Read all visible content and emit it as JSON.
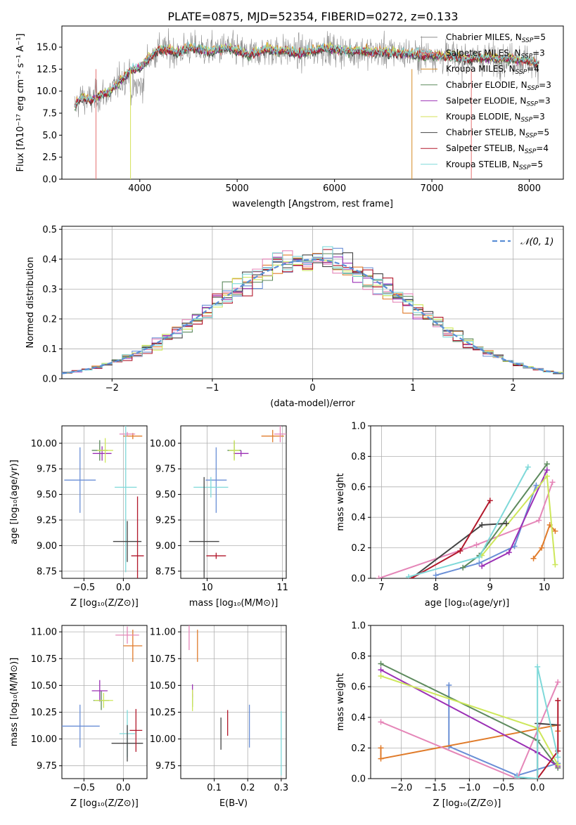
{
  "figure_title": "PLATE=0875, MJD=52354, FIBERID=0272, z=0.133",
  "colors": {
    "Chabrier MILES": "#8c8c8c",
    "Salpeter MILES": "#e57373",
    "Kroupa MILES": "#d58a24",
    "Chabrier ELODIE": "#5c8a5c",
    "Salpeter ELODIE": "#9b30b5",
    "Kroupa ELODIE": "#d4e157",
    "Chabrier STELIB": "#444444",
    "Salpeter STELIB": "#b2182b",
    "Kroupa STELIB": "#7fd9d9",
    "blue": "#6a8fd6",
    "orange": "#e07b2a",
    "pink": "#e586b8",
    "green": "#5d8a5d",
    "purple": "#9b30b5",
    "lime": "#cde75a",
    "dark": "#444444",
    "red": "#b2182b",
    "cyan": "#7fd9d9",
    "normal": "#5b8fd6"
  },
  "chart_data": [
    {
      "id": "spectrum",
      "type": "line",
      "title": "PLATE=0875, MJD=52354, FIBERID=0272, z=0.133",
      "xlabel": "wavelength [Angstrom, rest frame]",
      "ylabel": "Flux [fλ10⁻¹⁷ erg cm⁻² s⁻¹ A⁻¹]",
      "xlim": [
        3200,
        8350
      ],
      "ylim": [
        0,
        17.4
      ],
      "xticks": [
        4000,
        5000,
        6000,
        7000,
        8000
      ],
      "yticks": [
        "0.0",
        "2.5",
        "5.0",
        "7.5",
        "10.0",
        "12.5",
        "15.0"
      ],
      "ytick_values": [
        0,
        2.5,
        5,
        7.5,
        10,
        12.5,
        15
      ],
      "legend_position": "upper right",
      "legend": [
        {
          "name": "Chabrier MILES, N",
          "sub": "SSP",
          "tail": "=5",
          "color_key": "Chabrier MILES"
        },
        {
          "name": "Salpeter MILES, N",
          "sub": "SSP",
          "tail": "=3",
          "color_key": "Salpeter MILES"
        },
        {
          "name": "Kroupa MILES, N",
          "sub": "SSP",
          "tail": "=4",
          "color_key": "Kroupa MILES"
        },
        {
          "name": "Chabrier ELODIE, N",
          "sub": "SSP",
          "tail": "=3",
          "color_key": "Chabrier ELODIE"
        },
        {
          "name": "Salpeter ELODIE, N",
          "sub": "SSP",
          "tail": "=3",
          "color_key": "Salpeter ELODIE"
        },
        {
          "name": "Kroupa ELODIE, N",
          "sub": "SSP",
          "tail": "=3",
          "color_key": "Kroupa ELODIE"
        },
        {
          "name": "Chabrier STELIB, N",
          "sub": "SSP",
          "tail": "=5",
          "color_key": "Chabrier STELIB"
        },
        {
          "name": "Salpeter STELIB, N",
          "sub": "SSP",
          "tail": "=4",
          "color_key": "Salpeter STELIB"
        },
        {
          "name": "Kroupa STELIB, N",
          "sub": "SSP",
          "tail": "=5",
          "color_key": "Kroupa STELIB"
        }
      ],
      "data_trend": {
        "wavelength": [
          3330,
          3400,
          3500,
          3600,
          3700,
          3800,
          3900,
          4000,
          4100,
          4200,
          4300,
          4400,
          4500,
          4600,
          4700,
          4800,
          4900,
          5000,
          5100,
          5200,
          5300,
          5400,
          5500,
          5600,
          5700,
          5800,
          5900,
          6000,
          6100,
          6200,
          6300,
          6400,
          6500,
          6600,
          6700,
          6800,
          6900,
          7000,
          7100,
          7200,
          7300,
          7400,
          7500,
          7600,
          7700,
          7800,
          7900,
          8000,
          8100
        ],
        "flux": [
          8.2,
          9.3,
          8.9,
          9.6,
          9.9,
          11.2,
          12.3,
          12.6,
          13.8,
          14.8,
          14.6,
          14.4,
          14.9,
          14.8,
          14.5,
          14.7,
          14.9,
          14.6,
          14.2,
          14.3,
          14.8,
          14.5,
          14.6,
          14.3,
          14.4,
          14.6,
          14.9,
          14.7,
          14.5,
          14.6,
          14.5,
          14.4,
          14.5,
          14.4,
          14.3,
          14.2,
          14.1,
          14.2,
          13.9,
          14.0,
          13.8,
          13.6,
          13.8,
          13.7,
          13.6,
          13.7,
          13.5,
          13.4,
          13.1
        ]
      }
    },
    {
      "id": "residuals",
      "type": "line",
      "xlabel": "(data-model)/error",
      "ylabel": "Normed distribution",
      "xlim": [
        -2.5,
        2.5
      ],
      "ylim": [
        0,
        0.51
      ],
      "xticks": [
        "−2",
        "−1",
        "0",
        "1",
        "2"
      ],
      "xtick_values": [
        -2,
        -1,
        0,
        1,
        2
      ],
      "yticks": [
        "0.0",
        "0.1",
        "0.2",
        "0.3",
        "0.4",
        "0.5"
      ],
      "ytick_values": [
        0,
        0.1,
        0.2,
        0.3,
        0.4,
        0.5
      ],
      "legend_position": "upper right",
      "legend": [
        {
          "name": "𝒩(0, 1)",
          "color_key": "normal",
          "style": "dashed"
        }
      ],
      "normal_curve": {
        "mean": 0,
        "sigma": 1
      },
      "histogram_bin_width": 0.1
    },
    {
      "id": "age-vs-Z",
      "type": "scatter",
      "xlabel": "Z [log₁₀(Z/Z⊙)]",
      "ylabel": "age  [log₁₀(age/yr)]",
      "xlim": [
        -0.78,
        0.3
      ],
      "ylim": [
        8.68,
        10.17
      ],
      "xticks": [
        "−0.5",
        "0.0"
      ],
      "xtick_values": [
        -0.5,
        0
      ],
      "yticks": [
        "8.75",
        "9.00",
        "9.25",
        "9.50",
        "9.75",
        "10.00"
      ],
      "ytick_values": [
        8.75,
        9.0,
        9.25,
        9.5,
        9.75,
        10.0
      ],
      "points": [
        {
          "x": -0.55,
          "y": 9.64,
          "xerr": 0.2,
          "yerr": 0.32,
          "color_key": "blue"
        },
        {
          "x": 0.12,
          "y": 10.07,
          "xerr": 0.12,
          "yerr": 0.03,
          "color_key": "orange"
        },
        {
          "x": 0.05,
          "y": 10.09,
          "xerr": 0.1,
          "yerr": 0.02,
          "color_key": "pink"
        },
        {
          "x": -0.3,
          "y": 9.93,
          "xerr": 0.1,
          "yerr": 0.1,
          "color_key": "green"
        },
        {
          "x": -0.27,
          "y": 9.9,
          "xerr": 0.12,
          "yerr": 0.07,
          "color_key": "purple"
        },
        {
          "x": -0.23,
          "y": 9.93,
          "xerr": 0.1,
          "yerr": 0.12,
          "color_key": "lime"
        },
        {
          "x": 0.03,
          "y": 9.57,
          "xerr": 0.14,
          "yerr": 0.83,
          "color_key": "cyan"
        },
        {
          "x": 0.05,
          "y": 9.04,
          "xerr": 0.18,
          "yerr": 0.2,
          "color_key": "dark"
        },
        {
          "x": 0.18,
          "y": 8.9,
          "xerr": 0.08,
          "yerr": 0.58,
          "color_key": "red"
        }
      ]
    },
    {
      "id": "age-vs-mass",
      "type": "scatter",
      "xlabel": "mass [log₁₀(M/M⊙)]",
      "ylabel": "",
      "xlim": [
        9.65,
        11.05
      ],
      "ylim": [
        8.68,
        10.17
      ],
      "xticks": [
        "10",
        "11"
      ],
      "xtick_values": [
        10,
        11
      ],
      "yticks": [
        "8.75",
        "9.00",
        "9.25",
        "9.50",
        "9.75",
        "10.00"
      ],
      "ytick_values": [
        8.75,
        9.0,
        9.25,
        9.5,
        9.75,
        10.0
      ],
      "points": [
        {
          "x": 10.12,
          "y": 9.64,
          "xerr": 0.14,
          "yerr": 0.32,
          "color_key": "blue"
        },
        {
          "x": 10.87,
          "y": 10.07,
          "xerr": 0.15,
          "yerr": 0.06,
          "color_key": "orange"
        },
        {
          "x": 10.97,
          "y": 10.09,
          "xerr": 0.08,
          "yerr": 0.08,
          "color_key": "pink"
        },
        {
          "x": 10.36,
          "y": 9.93,
          "xerr": 0.09,
          "yerr": 0.09,
          "color_key": "green"
        },
        {
          "x": 10.45,
          "y": 9.9,
          "xerr": 0.1,
          "yerr": 0.03,
          "color_key": "purple"
        },
        {
          "x": 10.36,
          "y": 9.93,
          "xerr": 0.07,
          "yerr": 0.1,
          "color_key": "lime"
        },
        {
          "x": 10.05,
          "y": 9.57,
          "xerr": 0.23,
          "yerr": 0.1,
          "color_key": "cyan"
        },
        {
          "x": 9.96,
          "y": 9.04,
          "xerr": 0.2,
          "yerr": 0.63,
          "color_key": "dark"
        },
        {
          "x": 10.12,
          "y": 8.9,
          "xerr": 0.13,
          "yerr": 0.03,
          "color_key": "red"
        }
      ]
    },
    {
      "id": "weight-vs-age",
      "type": "line",
      "xlabel": "age  [log₁₀(age/yr)]",
      "ylabel": "mass weight",
      "xlim": [
        6.8,
        10.35
      ],
      "ylim": [
        0,
        1
      ],
      "xticks": [
        "7",
        "8",
        "9",
        "10"
      ],
      "xtick_values": [
        7,
        8,
        9,
        10
      ],
      "yticks": [
        "0.0",
        "0.2",
        "0.4",
        "0.6",
        "0.8",
        "1.0"
      ],
      "ytick_values": [
        0,
        0.2,
        0.4,
        0.6,
        0.8,
        1.0
      ],
      "series": [
        {
          "color_key": "blue",
          "x": [
            8.0,
            8.8,
            9.45,
            9.85
          ],
          "y": [
            0.02,
            0.1,
            0.21,
            0.61
          ]
        },
        {
          "color_key": "orange",
          "x": [
            9.8,
            9.95,
            10.1,
            10.2
          ],
          "y": [
            0.13,
            0.2,
            0.35,
            0.31
          ]
        },
        {
          "color_key": "pink",
          "x": [
            6.95,
            8.75,
            9.9,
            10.15
          ],
          "y": [
            0.0,
            0.22,
            0.38,
            0.63
          ]
        },
        {
          "color_key": "green",
          "x": [
            8.5,
            8.8,
            10.05
          ],
          "y": [
            0.07,
            0.15,
            0.75
          ]
        },
        {
          "color_key": "purple",
          "x": [
            8.85,
            9.35,
            10.05
          ],
          "y": [
            0.08,
            0.17,
            0.71
          ]
        },
        {
          "color_key": "lime",
          "x": [
            8.85,
            10.05,
            10.2
          ],
          "y": [
            0.15,
            0.67,
            0.09
          ]
        },
        {
          "color_key": "dark",
          "x": [
            7.55,
            8.85,
            9.3
          ],
          "y": [
            0.0,
            0.35,
            0.36
          ]
        },
        {
          "color_key": "red",
          "x": [
            7.55,
            8.45,
            9.0
          ],
          "y": [
            0.0,
            0.18,
            0.51
          ]
        },
        {
          "color_key": "cyan",
          "x": [
            7.5,
            8.8,
            9.7
          ],
          "y": [
            0.01,
            0.14,
            0.73
          ]
        }
      ]
    },
    {
      "id": "mass-vs-Z",
      "type": "scatter",
      "xlabel": "Z [log₁₀(Z/Z⊙)]",
      "ylabel": "mass [log₁₀(M/M⊙)]",
      "xlim": [
        -0.78,
        0.3
      ],
      "ylim": [
        9.63,
        11.06
      ],
      "xticks": [
        "−0.5",
        "0.0"
      ],
      "xtick_values": [
        -0.5,
        0
      ],
      "yticks": [
        "9.75",
        "10.00",
        "10.25",
        "10.50",
        "10.75",
        "11.00"
      ],
      "ytick_values": [
        9.75,
        10.0,
        10.25,
        10.5,
        10.75,
        11.0
      ],
      "points": [
        {
          "x": -0.55,
          "y": 10.12,
          "xerr": 0.25,
          "yerr": 0.2,
          "color_key": "blue"
        },
        {
          "x": 0.12,
          "y": 10.87,
          "xerr": 0.12,
          "yerr": 0.15,
          "color_key": "orange"
        },
        {
          "x": 0.05,
          "y": 10.97,
          "xerr": 0.15,
          "yerr": 0.08,
          "color_key": "pink"
        },
        {
          "x": -0.28,
          "y": 10.36,
          "xerr": 0.1,
          "yerr": 0.09,
          "color_key": "green"
        },
        {
          "x": -0.3,
          "y": 10.45,
          "xerr": 0.1,
          "yerr": 0.1,
          "color_key": "purple"
        },
        {
          "x": -0.25,
          "y": 10.36,
          "xerr": 0.12,
          "yerr": 0.07,
          "color_key": "lime"
        },
        {
          "x": 0.05,
          "y": 10.05,
          "xerr": 0.1,
          "yerr": 0.22,
          "color_key": "cyan"
        },
        {
          "x": 0.05,
          "y": 9.96,
          "xerr": 0.2,
          "yerr": 0.17,
          "color_key": "dark"
        },
        {
          "x": 0.16,
          "y": 10.08,
          "xerr": 0.08,
          "yerr": 0.2,
          "color_key": "red"
        }
      ]
    },
    {
      "id": "mass-vs-EBV",
      "type": "scatter",
      "xlabel": "E(B-V)",
      "ylabel": "",
      "xlim": [
        0.0,
        0.315
      ],
      "ylim": [
        9.63,
        11.06
      ],
      "xticks": [
        "0.1",
        "0.2",
        "0.3"
      ],
      "xtick_values": [
        0.1,
        0.2,
        0.3
      ],
      "yticks": [
        "9.75",
        "10.00",
        "10.25",
        "10.50",
        "10.75",
        "11.00"
      ],
      "ytick_values": [
        9.75,
        10.0,
        10.25,
        10.5,
        10.75,
        11.0
      ],
      "points": [
        {
          "x": 0.205,
          "y": 10.12,
          "xerr": 0,
          "yerr": 0.2,
          "color_key": "blue"
        },
        {
          "x": 0.05,
          "y": 10.87,
          "xerr": 0,
          "yerr": 0.15,
          "color_key": "orange"
        },
        {
          "x": 0.025,
          "y": 10.97,
          "xerr": 0,
          "yerr": 0.14,
          "color_key": "pink"
        },
        {
          "x": 0.035,
          "y": 10.36,
          "xerr": 0,
          "yerr": 0.06,
          "color_key": "green"
        },
        {
          "x": 0.035,
          "y": 10.45,
          "xerr": 0,
          "yerr": 0.06,
          "color_key": "purple"
        },
        {
          "x": 0.035,
          "y": 10.36,
          "xerr": 0,
          "yerr": 0.1,
          "color_key": "lime"
        },
        {
          "x": 0.3,
          "y": 9.96,
          "xerr": 0,
          "yerr": 0.3,
          "color_key": "cyan"
        },
        {
          "x": 0.12,
          "y": 10.05,
          "xerr": 0,
          "yerr": 0.15,
          "color_key": "dark"
        },
        {
          "x": 0.14,
          "y": 10.15,
          "xerr": 0,
          "yerr": 0.12,
          "color_key": "red"
        }
      ]
    },
    {
      "id": "weight-vs-Z",
      "type": "line",
      "xlabel": "Z [log₁₀(Z/Z⊙)]",
      "ylabel": "mass weight",
      "xlim": [
        -2.45,
        0.38
      ],
      "ylim": [
        0,
        1
      ],
      "xticks": [
        "−2.0",
        "−1.5",
        "−1.0",
        "−0.5",
        "0.0"
      ],
      "xtick_values": [
        -2.0,
        -1.5,
        -1.0,
        -0.5,
        0.0
      ],
      "yticks": [
        "0.0",
        "0.2",
        "0.4",
        "0.6",
        "0.8",
        "1.0"
      ],
      "ytick_values": [
        0,
        0.2,
        0.4,
        0.6,
        0.8,
        1.0
      ],
      "series": [
        {
          "color_key": "blue",
          "x": [
            -1.3,
            -1.3,
            -0.3,
            0.3
          ],
          "y": [
            0.61,
            0.21,
            0.02,
            0.1
          ]
        },
        {
          "color_key": "orange",
          "x": [
            -2.3,
            -2.3,
            0.3,
            0.3
          ],
          "y": [
            0.2,
            0.13,
            0.35,
            0.31
          ]
        },
        {
          "color_key": "pink",
          "x": [
            -2.3,
            -0.3,
            0.3
          ],
          "y": [
            0.37,
            0.0,
            0.63
          ]
        },
        {
          "color_key": "green",
          "x": [
            -2.3,
            0.0,
            0.3
          ],
          "y": [
            0.75,
            0.25,
            0.07
          ]
        },
        {
          "color_key": "purple",
          "x": [
            -2.3,
            0.0,
            0.3
          ],
          "y": [
            0.71,
            0.17,
            0.08
          ]
        },
        {
          "color_key": "lime",
          "x": [
            -2.3,
            0.0,
            0.3
          ],
          "y": [
            0.67,
            0.33,
            0.09
          ]
        },
        {
          "color_key": "dark",
          "x": [
            0.0,
            0.0,
            0.3
          ],
          "y": [
            0.0,
            0.36,
            0.35
          ]
        },
        {
          "color_key": "red",
          "x": [
            0.0,
            0.3,
            0.3
          ],
          "y": [
            0.0,
            0.18,
            0.51
          ]
        },
        {
          "color_key": "cyan",
          "x": [
            -0.3,
            0.0,
            0.0,
            0.3
          ],
          "y": [
            0.01,
            0.0,
            0.73,
            0.14
          ]
        }
      ]
    }
  ]
}
